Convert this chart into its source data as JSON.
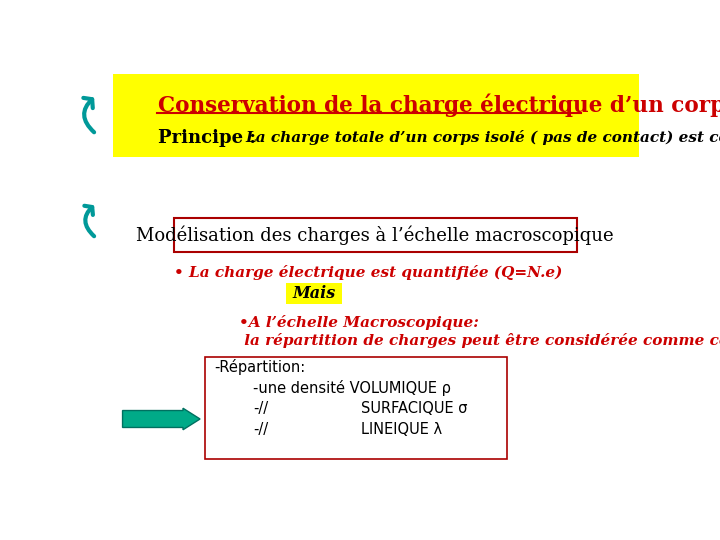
{
  "bg_color": "#ffffff",
  "title_text": "Conservation de la charge électrique d’un corps isolé",
  "title_color": "#cc0000",
  "title_bg": "#ffff00",
  "principe_bold": "Principe :",
  "principe_italic": "La charge totale d’un corps isolé ( pas de contact) est constante.",
  "modele_text": "Modélisation des charges à l’échelle macroscopique",
  "charge_text": "• La charge électrique est quantifiée (Q=N.e)",
  "mais_text": "Mais",
  "mais_bg": "#ffff00",
  "macro_line1": "•A l’échelle Macroscopique:",
  "macro_line2": " la répartition de charges peut être considérée comme continue",
  "repartition_title": "-Répartition:",
  "repartition_line1": "-une densité VOLUMIQUE ρ",
  "repartition_line2_a": "-//",
  "repartition_line2_b": "SURFACIQUE σ",
  "repartition_line3_a": "-//",
  "repartition_line3_b": "LINEIQUE λ",
  "red_color": "#cc0000",
  "dark_color": "#000000",
  "teal_color": "#009999",
  "green_arrow_color": "#00aa88",
  "green_arrow_edge": "#007060",
  "box_edge_color": "#aa0000"
}
